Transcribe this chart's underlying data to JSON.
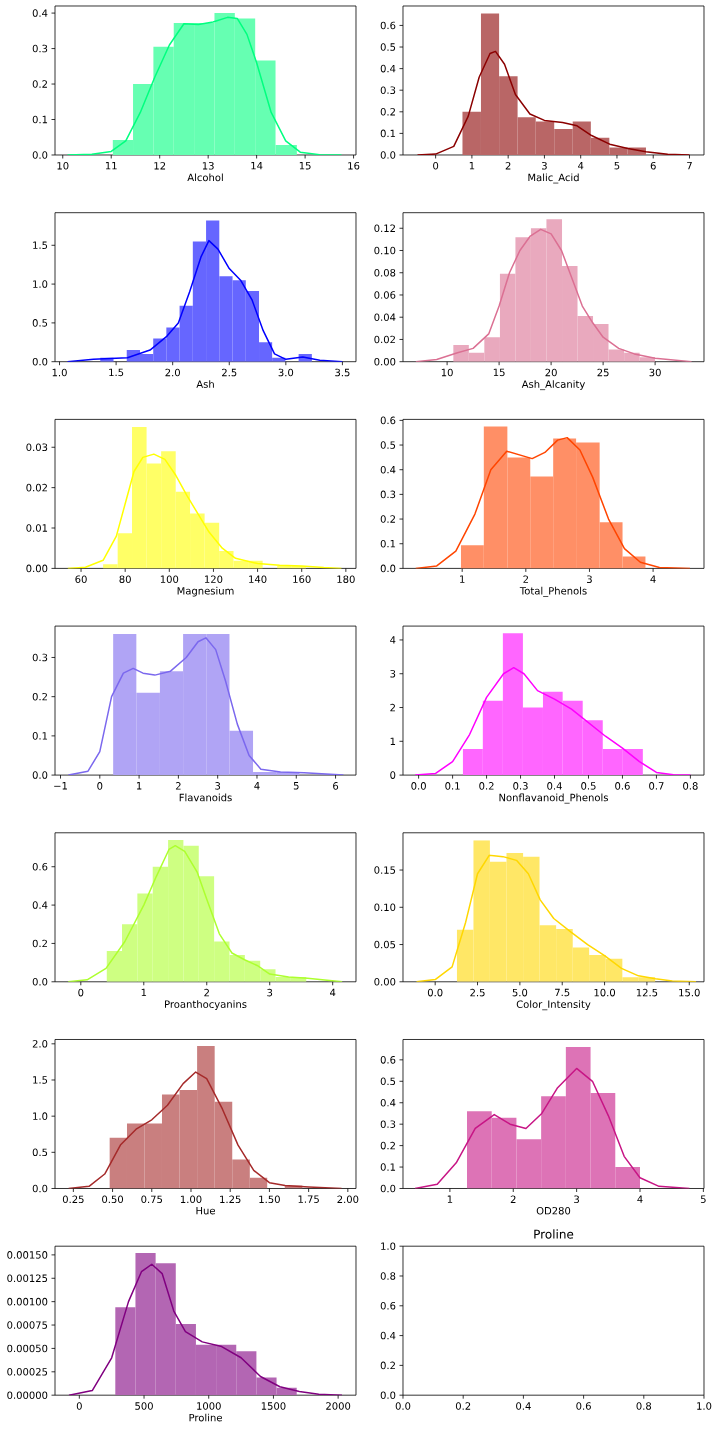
{
  "chart_data": [
    {
      "type": "histogram",
      "xlabel": "Alcohol",
      "xlim": [
        9.84,
        16.05
      ],
      "ylim": [
        0,
        0.42
      ],
      "xticks": [
        10,
        11,
        12,
        13,
        14,
        15,
        16
      ],
      "yticks": [
        {
          "value": 0,
          "label": "0.0"
        },
        {
          "value": 0.1,
          "label": "0.1"
        },
        {
          "value": 0.2,
          "label": "0.2"
        },
        {
          "value": 0.3,
          "label": "0.3"
        },
        {
          "value": 0.4,
          "label": "0.4"
        }
      ],
      "series": [
        {
          "color": "#66ffb2",
          "bins": [
            11.03,
            11.45,
            11.87,
            12.29,
            12.71,
            13.13,
            13.55,
            13.97,
            14.39,
            14.83
          ],
          "values": [
            0.042,
            0.2,
            0.305,
            0.372,
            0.372,
            0.4,
            0.385,
            0.266,
            0.028
          ]
        },
        {
          "type": "line",
          "color": "#00ff7f",
          "x": [
            10.1,
            10.6,
            11,
            11.3,
            11.6,
            11.9,
            12.2,
            12.5,
            12.8,
            13.1,
            13.4,
            13.6,
            13.8,
            14.0,
            14.3,
            14.6,
            14.9,
            15.3,
            15.75
          ],
          "values": [
            0,
            0.002,
            0.01,
            0.04,
            0.12,
            0.22,
            0.31,
            0.37,
            0.368,
            0.375,
            0.388,
            0.385,
            0.34,
            0.26,
            0.12,
            0.04,
            0.008,
            0.001,
            0
          ]
        }
      ]
    },
    {
      "type": "histogram",
      "xlabel": "Malic_Acid",
      "xlim": [
        -0.9,
        7.4
      ],
      "ylim": [
        0,
        0.69
      ],
      "xticks": [
        0,
        1,
        2,
        3,
        4,
        5,
        6,
        7
      ],
      "yticks": [
        {
          "value": 0,
          "label": "0.0"
        },
        {
          "value": 0.1,
          "label": "0.1"
        },
        {
          "value": 0.2,
          "label": "0.2"
        },
        {
          "value": 0.3,
          "label": "0.3"
        },
        {
          "value": 0.4,
          "label": "0.4"
        },
        {
          "value": 0.5,
          "label": "0.5"
        },
        {
          "value": 0.6,
          "label": "0.6"
        }
      ],
      "series": [
        {
          "color": "#b96666",
          "bins": [
            0.74,
            1.25,
            1.75,
            2.26,
            2.76,
            3.27,
            3.78,
            4.28,
            4.79,
            5.29,
            5.8
          ],
          "values": [
            0.2,
            0.655,
            0.365,
            0.175,
            0.155,
            0.12,
            0.155,
            0.08,
            0.035,
            0.035
          ]
        },
        {
          "type": "line",
          "color": "#8b0000",
          "x": [
            -0.5,
            0,
            0.5,
            0.9,
            1.2,
            1.5,
            1.65,
            1.9,
            2.2,
            2.6,
            3.0,
            3.5,
            3.9,
            4.3,
            4.8,
            5.3,
            5.8,
            6.4,
            7
          ],
          "values": [
            0,
            0.004,
            0.04,
            0.18,
            0.36,
            0.47,
            0.48,
            0.42,
            0.28,
            0.19,
            0.16,
            0.15,
            0.135,
            0.09,
            0.05,
            0.03,
            0.015,
            0.003,
            0
          ]
        }
      ]
    },
    {
      "type": "histogram",
      "xlabel": "Ash",
      "xlim": [
        0.96,
        3.62
      ],
      "ylim": [
        0,
        1.92
      ],
      "xticks": [
        {
          "value": 1,
          "label": "1.0"
        },
        {
          "value": 1.5,
          "label": "1.5"
        },
        {
          "value": 2,
          "label": "2.0"
        },
        {
          "value": 2.5,
          "label": "2.5"
        },
        {
          "value": 3,
          "label": "3.0"
        },
        {
          "value": 3.5,
          "label": "3.5"
        }
      ],
      "yticks": [
        {
          "value": 0,
          "label": "0.0"
        },
        {
          "value": 0.5,
          "label": "0.5"
        },
        {
          "value": 1,
          "label": "1.0"
        },
        {
          "value": 1.5,
          "label": "1.5"
        }
      ],
      "series": [
        {
          "color": "#6666ff",
          "bins": [
            1.36,
            1.477,
            1.594,
            1.711,
            1.828,
            1.944,
            2.061,
            2.178,
            2.295,
            2.412,
            2.529,
            2.646,
            2.763,
            2.879,
            2.996,
            3.113,
            3.23
          ],
          "values": [
            0.05,
            0,
            0.15,
            0.1,
            0.3,
            0.44,
            0.72,
            1.55,
            1.82,
            1.1,
            1.05,
            0.91,
            0.25,
            0.05,
            0,
            0.1
          ]
        },
        {
          "type": "line",
          "color": "#0000ff",
          "x": [
            1.07,
            1.3,
            1.45,
            1.6,
            1.8,
            1.95,
            2.05,
            2.15,
            2.25,
            2.32,
            2.4,
            2.5,
            2.6,
            2.7,
            2.8,
            2.9,
            3.0,
            3.15,
            3.3,
            3.5
          ],
          "values": [
            0,
            0.03,
            0.04,
            0.05,
            0.15,
            0.33,
            0.5,
            0.9,
            1.35,
            1.56,
            1.45,
            1.2,
            1.05,
            0.8,
            0.4,
            0.1,
            0.03,
            0.06,
            0.02,
            0
          ]
        }
      ]
    },
    {
      "type": "histogram",
      "xlabel": "Ash_Alcanity",
      "xlim": [
        5.76,
        34.7
      ],
      "ylim": [
        0,
        0.134
      ],
      "xticks": [
        10,
        15,
        20,
        25,
        30
      ],
      "yticks": [
        {
          "value": 0,
          "label": "0.00"
        },
        {
          "value": 0.02,
          "label": "0.02"
        },
        {
          "value": 0.04,
          "label": "0.04"
        },
        {
          "value": 0.06,
          "label": "0.06"
        },
        {
          "value": 0.08,
          "label": "0.08"
        },
        {
          "value": 0.1,
          "label": "0.10"
        },
        {
          "value": 0.12,
          "label": "0.12"
        }
      ],
      "series": [
        {
          "color": "#e9a9be",
          "bins": [
            10.6,
            12.09,
            13.58,
            15.08,
            16.57,
            18.06,
            19.55,
            21.05,
            22.54,
            24.03,
            25.52,
            27.02,
            28.51,
            30.0
          ],
          "values": [
            0.015,
            0.008,
            0.022,
            0.079,
            0.112,
            0.12,
            0.128,
            0.086,
            0.041,
            0.034,
            0.011,
            0.008,
            0.004
          ]
        },
        {
          "type": "line",
          "color": "#db7093",
          "x": [
            7,
            9,
            11,
            12.5,
            14,
            15,
            16,
            17,
            18,
            19,
            20,
            21,
            22,
            23,
            24,
            25,
            26.5,
            28,
            30,
            33.5
          ],
          "values": [
            0,
            0.002,
            0.008,
            0.012,
            0.025,
            0.05,
            0.08,
            0.1,
            0.113,
            0.119,
            0.115,
            0.1,
            0.075,
            0.05,
            0.035,
            0.022,
            0.012,
            0.007,
            0.003,
            0
          ]
        }
      ]
    },
    {
      "type": "histogram",
      "xlabel": "Magnesium",
      "xlim": [
        48.2,
        184.6
      ],
      "ylim": [
        0,
        0.0369
      ],
      "xticks": [
        60,
        80,
        100,
        120,
        140,
        160,
        180
      ],
      "yticks": [
        {
          "value": 0,
          "label": "0.00"
        },
        {
          "value": 0.01,
          "label": "0.01"
        },
        {
          "value": 0.02,
          "label": "0.02"
        },
        {
          "value": 0.03,
          "label": "0.03"
        }
      ],
      "series": [
        {
          "color": "#ffff66",
          "bins": [
            70,
            76.6,
            83.1,
            89.7,
            96.3,
            102.9,
            109.4,
            116,
            122.6,
            129.1,
            135.7,
            142.3,
            148.9,
            155.4,
            162
          ],
          "values": [
            0.001,
            0.0087,
            0.035,
            0.026,
            0.029,
            0.019,
            0.0136,
            0.0113,
            0.0043,
            0.0019,
            0.0019,
            0,
            0.0006,
            0.0006
          ]
        },
        {
          "type": "line",
          "color": "#ffff00",
          "x": [
            54,
            62,
            70,
            76,
            80,
            84,
            88,
            93,
            98,
            103,
            108,
            113,
            118,
            124,
            130,
            140,
            150,
            160,
            170,
            178
          ],
          "values": [
            0,
            0.0003,
            0.002,
            0.008,
            0.016,
            0.024,
            0.0275,
            0.0283,
            0.027,
            0.023,
            0.018,
            0.0135,
            0.009,
            0.005,
            0.0025,
            0.0012,
            0.0008,
            0.0006,
            0.0002,
            0
          ]
        }
      ]
    },
    {
      "type": "histogram",
      "xlabel": "Total_Phenols",
      "xlim": [
        0.07,
        4.8
      ],
      "ylim": [
        0,
        0.604
      ],
      "xticks": [
        1,
        2,
        3,
        4
      ],
      "yticks": [
        {
          "value": 0,
          "label": "0.0"
        },
        {
          "value": 0.1,
          "label": "0.1"
        },
        {
          "value": 0.2,
          "label": "0.2"
        },
        {
          "value": 0.3,
          "label": "0.3"
        },
        {
          "value": 0.4,
          "label": "0.4"
        },
        {
          "value": 0.5,
          "label": "0.5"
        },
        {
          "value": 0.6,
          "label": "0.6"
        }
      ],
      "series": [
        {
          "color": "#ff8f66",
          "bins": [
            0.98,
            1.34,
            1.71,
            2.07,
            2.43,
            2.79,
            3.16,
            3.52,
            3.88
          ],
          "values": [
            0.094,
            0.575,
            0.45,
            0.372,
            0.527,
            0.51,
            0.187,
            0.048
          ]
        },
        {
          "type": "line",
          "color": "#ff4500",
          "x": [
            0.27,
            0.6,
            0.9,
            1.2,
            1.45,
            1.7,
            1.9,
            2.1,
            2.3,
            2.5,
            2.65,
            2.85,
            3.05,
            3.3,
            3.55,
            3.8,
            4.1,
            4.58
          ],
          "values": [
            0,
            0.01,
            0.07,
            0.22,
            0.4,
            0.475,
            0.46,
            0.445,
            0.47,
            0.52,
            0.53,
            0.48,
            0.37,
            0.2,
            0.08,
            0.025,
            0.004,
            0
          ]
        }
      ]
    },
    {
      "type": "histogram",
      "xlabel": "Flavanoids",
      "xlim": [
        -1.14,
        6.52
      ],
      "ylim": [
        0,
        0.38
      ],
      "xticks": [
        {
          "value": -1,
          "label": "−1"
        },
        0,
        1,
        2,
        3,
        4,
        5,
        6
      ],
      "yticks": [
        {
          "value": 0,
          "label": "0.0"
        },
        {
          "value": 0.1,
          "label": "0.1"
        },
        {
          "value": 0.2,
          "label": "0.2"
        },
        {
          "value": 0.3,
          "label": "0.3"
        }
      ],
      "series": [
        {
          "color": "#b0a4f5",
          "bins": [
            0.34,
            0.93,
            1.53,
            2.12,
            2.71,
            3.3,
            3.9,
            4.49,
            5.08
          ],
          "values": [
            0.36,
            0.21,
            0.265,
            0.36,
            0.36,
            0.113,
            0.008,
            0.008
          ]
        },
        {
          "type": "line",
          "color": "#7b68ee",
          "x": [
            -0.8,
            -0.3,
            0,
            0.3,
            0.6,
            0.85,
            1.1,
            1.4,
            1.8,
            2.2,
            2.5,
            2.7,
            2.95,
            3.2,
            3.5,
            3.8,
            4.1,
            4.6,
            5.2,
            6.2
          ],
          "values": [
            0,
            0.01,
            0.06,
            0.2,
            0.26,
            0.272,
            0.26,
            0.255,
            0.265,
            0.3,
            0.34,
            0.35,
            0.32,
            0.24,
            0.13,
            0.05,
            0.015,
            0.008,
            0.006,
            0
          ]
        }
      ]
    },
    {
      "type": "histogram",
      "xlabel": "Nonflavanoid_Phenols",
      "xlim": [
        -0.046,
        0.84
      ],
      "ylim": [
        0,
        4.41
      ],
      "xticks": [
        {
          "value": 0,
          "label": "0.0"
        },
        {
          "value": 0.1,
          "label": "0.1"
        },
        {
          "value": 0.2,
          "label": "0.2"
        },
        {
          "value": 0.3,
          "label": "0.3"
        },
        {
          "value": 0.4,
          "label": "0.4"
        },
        {
          "value": 0.5,
          "label": "0.5"
        },
        {
          "value": 0.6,
          "label": "0.6"
        },
        {
          "value": 0.7,
          "label": "0.7"
        },
        {
          "value": 0.8,
          "label": "0.8"
        }
      ],
      "yticks": [
        0,
        1,
        2,
        3,
        4
      ],
      "series": [
        {
          "color": "#ff66ff",
          "bins": [
            0.13,
            0.189,
            0.248,
            0.307,
            0.366,
            0.424,
            0.483,
            0.542,
            0.601,
            0.66
          ],
          "values": [
            0.77,
            2.2,
            4.2,
            2.0,
            2.47,
            2.2,
            1.62,
            0.77,
            0.77
          ]
        },
        {
          "type": "line",
          "color": "#ff00ff",
          "x": [
            -0.01,
            0.05,
            0.1,
            0.15,
            0.2,
            0.25,
            0.28,
            0.31,
            0.35,
            0.4,
            0.45,
            0.5,
            0.55,
            0.6,
            0.65,
            0.7,
            0.75,
            0.8
          ],
          "values": [
            0,
            0.05,
            0.4,
            1.2,
            2.3,
            3.0,
            3.18,
            3.0,
            2.5,
            2.25,
            1.95,
            1.55,
            1.15,
            0.8,
            0.4,
            0.08,
            0.01,
            0
          ]
        }
      ]
    },
    {
      "type": "histogram",
      "xlabel": "Proanthocyanins",
      "xlim": [
        -0.41,
        4.37
      ],
      "ylim": [
        0,
        0.777
      ],
      "xticks": [
        0,
        1,
        2,
        3,
        4
      ],
      "yticks": [
        {
          "value": 0,
          "label": "0.0"
        },
        {
          "value": 0.2,
          "label": "0.2"
        },
        {
          "value": 0.4,
          "label": "0.4"
        },
        {
          "value": 0.6,
          "label": "0.6"
        }
      ],
      "series": [
        {
          "color": "#ceff82",
          "bins": [
            0.41,
            0.654,
            0.898,
            1.142,
            1.386,
            1.629,
            1.873,
            2.117,
            2.361,
            2.605,
            2.849,
            3.092,
            3.336,
            3.58
          ],
          "values": [
            0.16,
            0.3,
            0.46,
            0.6,
            0.74,
            0.71,
            0.55,
            0.21,
            0.14,
            0.11,
            0.065,
            0.025,
            0.025
          ]
        },
        {
          "type": "line",
          "color": "#adff2f",
          "x": [
            -0.2,
            0.1,
            0.4,
            0.7,
            1.0,
            1.2,
            1.4,
            1.5,
            1.65,
            1.85,
            2.0,
            2.2,
            2.4,
            2.6,
            2.8,
            3.0,
            3.3,
            3.6,
            4.15
          ],
          "values": [
            0,
            0.01,
            0.07,
            0.21,
            0.4,
            0.55,
            0.69,
            0.71,
            0.68,
            0.57,
            0.43,
            0.25,
            0.15,
            0.115,
            0.085,
            0.04,
            0.025,
            0.018,
            0
          ]
        }
      ]
    },
    {
      "type": "histogram",
      "xlabel": "Color_Intensity",
      "xlim": [
        -1.9,
        15.87
      ],
      "ylim": [
        0,
        0.2
      ],
      "xticks": [
        {
          "value": 0,
          "label": "0.0"
        },
        {
          "value": 2.5,
          "label": "2.5"
        },
        {
          "value": 5,
          "label": "5.0"
        },
        {
          "value": 7.5,
          "label": "7.5"
        },
        {
          "value": 10,
          "label": "10.0"
        },
        {
          "value": 12.5,
          "label": "12.5"
        },
        {
          "value": 15,
          "label": "15.0"
        }
      ],
      "yticks": [
        {
          "value": 0,
          "label": "0.00"
        },
        {
          "value": 0.05,
          "label": "0.05"
        },
        {
          "value": 0.1,
          "label": "0.10"
        },
        {
          "value": 0.15,
          "label": "0.15"
        }
      ],
      "series": [
        {
          "color": "#ffe766",
          "bins": [
            1.28,
            2.26,
            3.23,
            4.21,
            5.19,
            6.16,
            7.14,
            8.12,
            9.09,
            10.07,
            11.05,
            12.02,
            13.0
          ],
          "values": [
            0.07,
            0.19,
            0.161,
            0.173,
            0.168,
            0.076,
            0.071,
            0.046,
            0.036,
            0.031,
            0.006,
            0.006
          ]
        },
        {
          "type": "line",
          "color": "#ffd700",
          "x": [
            -1.1,
            0,
            1,
            1.8,
            2.5,
            3.2,
            4,
            4.8,
            5.5,
            6.2,
            7,
            8,
            9,
            10,
            11,
            12,
            13,
            14,
            15.4
          ],
          "values": [
            0,
            0.003,
            0.02,
            0.08,
            0.145,
            0.17,
            0.168,
            0.163,
            0.145,
            0.11,
            0.085,
            0.067,
            0.05,
            0.035,
            0.018,
            0.008,
            0.004,
            0.001,
            0
          ]
        }
      ]
    },
    {
      "type": "histogram",
      "xlabel": "Hue",
      "xlim": [
        0.133,
        2.052
      ],
      "ylim": [
        0,
        2.06
      ],
      "xticks": [
        {
          "value": 0.25,
          "label": "0.25"
        },
        {
          "value": 0.5,
          "label": "0.50"
        },
        {
          "value": 0.75,
          "label": "0.75"
        },
        {
          "value": 1,
          "label": "1.00"
        },
        {
          "value": 1.25,
          "label": "1.25"
        },
        {
          "value": 1.5,
          "label": "1.50"
        },
        {
          "value": 1.75,
          "label": "1.75"
        },
        {
          "value": 2,
          "label": "2.00"
        }
      ],
      "yticks": [
        {
          "value": 0,
          "label": "0.0"
        },
        {
          "value": 0.5,
          "label": "0.5"
        },
        {
          "value": 1,
          "label": "1.0"
        },
        {
          "value": 1.5,
          "label": "1.5"
        },
        {
          "value": 2,
          "label": "2.0"
        }
      ],
      "series": [
        {
          "color": "#c97f7f",
          "bins": [
            0.48,
            0.592,
            0.704,
            0.815,
            0.927,
            1.039,
            1.151,
            1.263,
            1.375,
            1.486,
            1.598,
            1.71
          ],
          "values": [
            0.7,
            0.9,
            0.9,
            1.3,
            1.36,
            1.97,
            1.2,
            0.4,
            0.15,
            0,
            0.04
          ]
        },
        {
          "type": "line",
          "color": "#a52a2a",
          "x": [
            0.22,
            0.35,
            0.45,
            0.55,
            0.65,
            0.75,
            0.85,
            0.95,
            1.03,
            1.1,
            1.2,
            1.3,
            1.4,
            1.5,
            1.6,
            1.75,
            1.96
          ],
          "values": [
            0,
            0.03,
            0.2,
            0.6,
            0.82,
            0.95,
            1.15,
            1.45,
            1.61,
            1.52,
            1.1,
            0.6,
            0.25,
            0.08,
            0.04,
            0.02,
            0
          ]
        }
      ]
    },
    {
      "type": "histogram",
      "xlabel": "OD280",
      "xlim": [
        0.26,
        5.01
      ],
      "ylim": [
        0,
        0.695
      ],
      "xticks": [
        1,
        2,
        3,
        4,
        5
      ],
      "yticks": [
        {
          "value": 0,
          "label": "0.0"
        },
        {
          "value": 0.1,
          "label": "0.1"
        },
        {
          "value": 0.2,
          "label": "0.2"
        },
        {
          "value": 0.3,
          "label": "0.3"
        },
        {
          "value": 0.4,
          "label": "0.4"
        },
        {
          "value": 0.5,
          "label": "0.5"
        },
        {
          "value": 0.6,
          "label": "0.6"
        }
      ],
      "series": [
        {
          "color": "#dd73b6",
          "bins": [
            1.27,
            1.66,
            2.05,
            2.44,
            2.83,
            3.22,
            3.61,
            4.0
          ],
          "values": [
            0.36,
            0.33,
            0.23,
            0.43,
            0.66,
            0.445,
            0.1
          ]
        },
        {
          "type": "line",
          "color": "#c71585",
          "x": [
            0.45,
            0.8,
            1.1,
            1.4,
            1.7,
            1.95,
            2.2,
            2.45,
            2.7,
            3.0,
            3.25,
            3.5,
            3.75,
            4.0,
            4.3,
            4.78
          ],
          "values": [
            0,
            0.02,
            0.12,
            0.28,
            0.345,
            0.3,
            0.28,
            0.35,
            0.47,
            0.56,
            0.5,
            0.34,
            0.15,
            0.05,
            0.01,
            0
          ]
        }
      ]
    },
    {
      "type": "histogram",
      "xlabel": "Proline",
      "xlim": [
        -188,
        2138
      ],
      "ylim": [
        0,
        0.001593
      ],
      "xticks": [
        0,
        500,
        1000,
        1500,
        2000
      ],
      "yticks": [
        {
          "value": 0,
          "label": "0.00000"
        },
        {
          "value": 0.00025,
          "label": "0.00025"
        },
        {
          "value": 0.0005,
          "label": "0.00050"
        },
        {
          "value": 0.00075,
          "label": "0.00075"
        },
        {
          "value": 0.001,
          "label": "0.00100"
        },
        {
          "value": 0.00125,
          "label": "0.00125"
        },
        {
          "value": 0.0015,
          "label": "0.00150"
        }
      ],
      "series": [
        {
          "color": "#b366b3",
          "bins": [
            278,
            433.8,
            589.6,
            745.3,
            901.1,
            1056.9,
            1212.7,
            1368.4,
            1524.2,
            1680
          ],
          "values": [
            0.00094,
            0.00152,
            0.00141,
            0.00076,
            0.00054,
            0.00054,
            0.00047,
            0.00019,
            8e-05
          ]
        },
        {
          "type": "line",
          "color": "#800080",
          "x": [
            -80,
            100,
            250,
            380,
            480,
            560,
            640,
            730,
            820,
            950,
            1100,
            1250,
            1400,
            1550,
            1700,
            1850,
            2030
          ],
          "values": [
            0,
            5e-05,
            0.0004,
            0.001,
            0.00132,
            0.0014,
            0.0013,
            0.0009,
            0.00068,
            0.00057,
            0.00052,
            0.0004,
            0.0002,
            9e-05,
            4e-05,
            1e-05,
            0
          ]
        }
      ]
    },
    {
      "type": "line",
      "title": "Proline",
      "xlim": [
        0,
        1
      ],
      "ylim": [
        0,
        1
      ],
      "xticks": [
        {
          "value": 0,
          "label": "0.0"
        },
        {
          "value": 0.2,
          "label": "0.2"
        },
        {
          "value": 0.4,
          "label": "0.4"
        },
        {
          "value": 0.6,
          "label": "0.6"
        },
        {
          "value": 0.8,
          "label": "0.8"
        },
        {
          "value": 1,
          "label": "1.0"
        }
      ],
      "yticks": [
        {
          "value": 0,
          "label": "0.0"
        },
        {
          "value": 0.2,
          "label": "0.2"
        },
        {
          "value": 0.4,
          "label": "0.4"
        },
        {
          "value": 0.6,
          "label": "0.6"
        },
        {
          "value": 0.8,
          "label": "0.8"
        },
        {
          "value": 1,
          "label": "1.0"
        }
      ]
    }
  ]
}
